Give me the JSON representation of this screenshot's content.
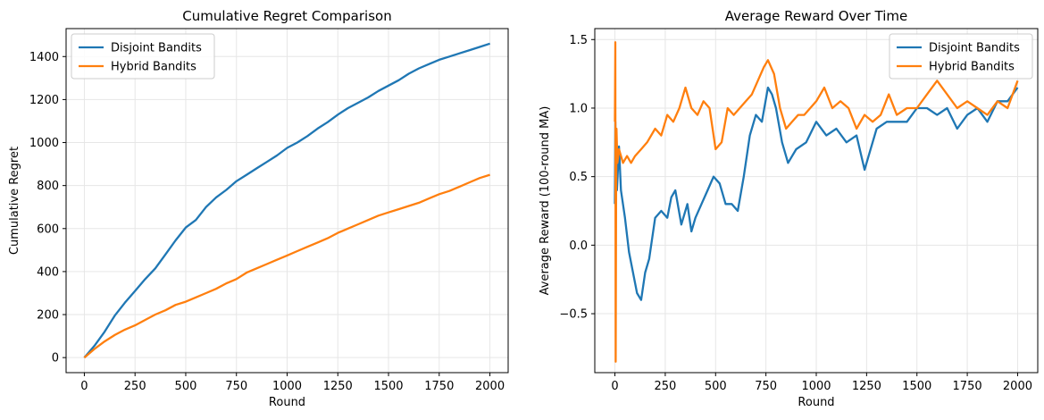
{
  "figure": {
    "background": "#ffffff",
    "grid_color": "#e6e6e6"
  },
  "chart_data": [
    {
      "type": "line",
      "title": "Cumulative Regret Comparison",
      "xlabel": "Round",
      "ylabel": "Cumulative Regret",
      "xlim": [
        -90,
        2090
      ],
      "ylim": [
        -70,
        1530
      ],
      "xticks": [
        0,
        250,
        500,
        750,
        1000,
        1250,
        1500,
        1750,
        2000
      ],
      "xtick_labels": [
        "0",
        "250",
        "500",
        "750",
        "1000",
        "1250",
        "1500",
        "1750",
        "2000"
      ],
      "yticks": [
        0,
        200,
        400,
        600,
        800,
        1000,
        1200,
        1400
      ],
      "ytick_labels": [
        "0",
        "200",
        "400",
        "600",
        "800",
        "1000",
        "1200",
        "1400"
      ],
      "grid": true,
      "legend_position": "top-left",
      "series": [
        {
          "name": "Disjoint Bandits",
          "color": "#1f77b4",
          "x": [
            0,
            50,
            100,
            150,
            200,
            250,
            300,
            350,
            400,
            450,
            500,
            550,
            600,
            650,
            700,
            750,
            800,
            850,
            900,
            950,
            1000,
            1050,
            1100,
            1150,
            1200,
            1250,
            1300,
            1350,
            1400,
            1450,
            1500,
            1550,
            1600,
            1650,
            1700,
            1750,
            1800,
            1850,
            1900,
            1950,
            2000
          ],
          "y": [
            0,
            55,
            120,
            195,
            255,
            310,
            365,
            415,
            480,
            545,
            605,
            640,
            700,
            745,
            780,
            820,
            850,
            880,
            910,
            940,
            975,
            1000,
            1030,
            1065,
            1095,
            1130,
            1160,
            1185,
            1210,
            1240,
            1265,
            1290,
            1320,
            1345,
            1365,
            1385,
            1400,
            1415,
            1430,
            1445,
            1460
          ]
        },
        {
          "name": "Hybrid Bandits",
          "color": "#ff7f0e",
          "x": [
            0,
            50,
            100,
            150,
            200,
            250,
            300,
            350,
            400,
            450,
            500,
            550,
            600,
            650,
            700,
            750,
            800,
            850,
            900,
            950,
            1000,
            1050,
            1100,
            1150,
            1200,
            1250,
            1300,
            1350,
            1400,
            1450,
            1500,
            1550,
            1600,
            1650,
            1700,
            1750,
            1800,
            1850,
            1900,
            1950,
            2000
          ],
          "y": [
            0,
            40,
            75,
            105,
            130,
            150,
            175,
            200,
            220,
            245,
            260,
            280,
            300,
            320,
            345,
            365,
            395,
            415,
            435,
            455,
            475,
            495,
            515,
            535,
            555,
            580,
            600,
            620,
            640,
            660,
            675,
            690,
            705,
            720,
            740,
            760,
            775,
            795,
            815,
            835,
            850
          ]
        }
      ]
    },
    {
      "type": "line",
      "title": "Average Reward Over Time",
      "xlabel": "Round",
      "ylabel": "Average Reward (100-round MA)",
      "xlim": [
        -100,
        2100
      ],
      "ylim": [
        -0.93,
        1.58
      ],
      "xticks": [
        0,
        250,
        500,
        750,
        1000,
        1250,
        1500,
        1750,
        2000
      ],
      "xtick_labels": [
        "0",
        "250",
        "500",
        "750",
        "1000",
        "1250",
        "1500",
        "1750",
        "2000"
      ],
      "yticks": [
        -0.5,
        0.0,
        0.5,
        1.0,
        1.5
      ],
      "ytick_labels": [
        "−0.5",
        "0.0",
        "0.5",
        "1.0",
        "1.5"
      ],
      "grid": true,
      "legend_position": "top-right",
      "series": [
        {
          "name": "Disjoint Bandits",
          "color": "#1f77b4",
          "x": [
            0,
            2,
            5,
            10,
            20,
            30,
            50,
            70,
            90,
            110,
            130,
            150,
            170,
            200,
            230,
            260,
            280,
            300,
            330,
            360,
            380,
            400,
            430,
            460,
            490,
            520,
            550,
            580,
            610,
            640,
            670,
            700,
            730,
            760,
            780,
            800,
            830,
            860,
            900,
            950,
            1000,
            1050,
            1100,
            1150,
            1200,
            1240,
            1260,
            1300,
            1350,
            1400,
            1450,
            1500,
            1550,
            1600,
            1650,
            1700,
            1750,
            1800,
            1850,
            1900,
            1950,
            2000
          ],
          "y": [
            0.3,
            0.9,
            0.6,
            0.4,
            0.72,
            0.4,
            0.2,
            -0.05,
            -0.2,
            -0.35,
            -0.4,
            -0.2,
            -0.1,
            0.2,
            0.25,
            0.2,
            0.35,
            0.4,
            0.15,
            0.3,
            0.1,
            0.2,
            0.3,
            0.4,
            0.5,
            0.45,
            0.3,
            0.3,
            0.25,
            0.5,
            0.8,
            0.95,
            0.9,
            1.15,
            1.1,
            1.0,
            0.75,
            0.6,
            0.7,
            0.75,
            0.9,
            0.8,
            0.85,
            0.75,
            0.8,
            0.55,
            0.65,
            0.85,
            0.9,
            0.9,
            0.9,
            1.0,
            1.0,
            0.95,
            1.0,
            0.85,
            0.95,
            1.0,
            0.9,
            1.05,
            1.05,
            1.15
          ]
        },
        {
          "name": "Hybrid Bandits",
          "color": "#ff7f0e",
          "x": [
            0,
            2,
            4,
            6,
            8,
            12,
            20,
            40,
            60,
            80,
            100,
            130,
            160,
            200,
            230,
            260,
            290,
            320,
            350,
            380,
            410,
            440,
            470,
            500,
            530,
            560,
            590,
            620,
            650,
            680,
            710,
            740,
            760,
            790,
            820,
            850,
            880,
            910,
            940,
            970,
            1000,
            1040,
            1080,
            1120,
            1160,
            1200,
            1240,
            1280,
            1320,
            1360,
            1400,
            1450,
            1500,
            1550,
            1600,
            1650,
            1700,
            1750,
            1800,
            1850,
            1900,
            1950,
            2000
          ],
          "y": [
            0.9,
            1.48,
            -0.85,
            0.4,
            0.85,
            0.6,
            0.7,
            0.6,
            0.65,
            0.6,
            0.65,
            0.7,
            0.75,
            0.85,
            0.8,
            0.95,
            0.9,
            1.0,
            1.15,
            1.0,
            0.95,
            1.05,
            1.0,
            0.7,
            0.75,
            1.0,
            0.95,
            1.0,
            1.05,
            1.1,
            1.2,
            1.3,
            1.35,
            1.25,
            1.0,
            0.85,
            0.9,
            0.95,
            0.95,
            1.0,
            1.05,
            1.15,
            1.0,
            1.05,
            1.0,
            0.85,
            0.95,
            0.9,
            0.95,
            1.1,
            0.95,
            1.0,
            1.0,
            1.1,
            1.2,
            1.1,
            1.0,
            1.05,
            1.0,
            0.95,
            1.05,
            1.0,
            1.2
          ]
        }
      ]
    }
  ]
}
